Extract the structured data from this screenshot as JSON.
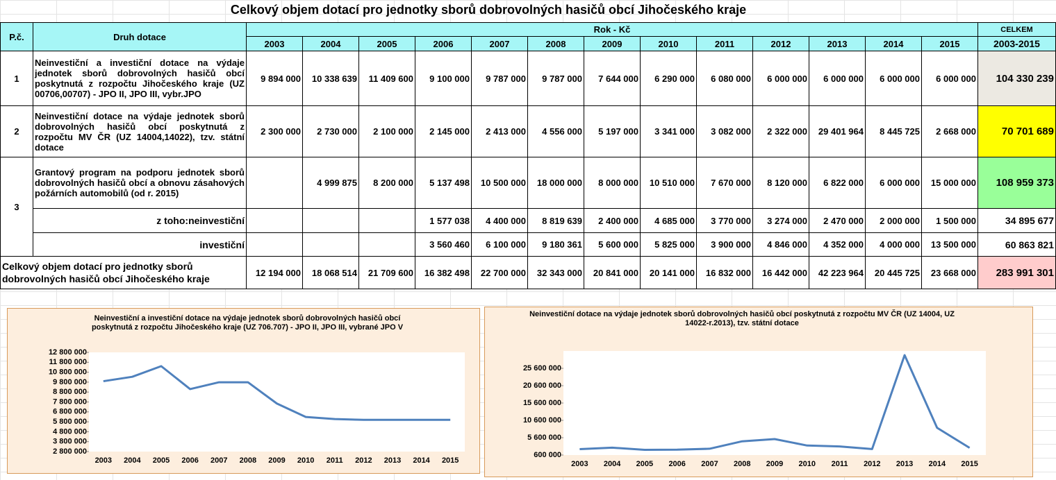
{
  "title": "Celkový objem dotací pro jednotky sborů dobrovolných hasičů obcí Jihočeského kraje",
  "table": {
    "header": {
      "no": "P.č.",
      "type": "Druh dotace",
      "years_group": "Rok - Kč",
      "years": [
        "2003",
        "2004",
        "2005",
        "2006",
        "2007",
        "2008",
        "2009",
        "2010",
        "2011",
        "2012",
        "2013",
        "2014",
        "2015"
      ],
      "total_top": "CELKEM",
      "total_bottom": "2003-2015"
    },
    "rows": [
      {
        "no": "1",
        "label": "Neinvestiční a investiční dotace na výdaje jednotek sborů dobrovolných hasičů obcí poskytnutá z rozpočtu Jihočeského kraje (UZ 00706,00707) - JPO II, JPO III, vybr.JPO",
        "values": [
          "9 894 000",
          "10 338 639",
          "11 409 600",
          "9 100 000",
          "9 787 000",
          "9 787 000",
          "7 644 000",
          "6 290 000",
          "6 080 000",
          "6 000 000",
          "6 000 000",
          "6 000 000",
          "6 000 000"
        ],
        "total": "104 330 239"
      },
      {
        "no": "2",
        "label": "Neinvestiční dotace na výdaje jednotek sborů dobrovolných hasičů obcí poskytnutá z rozpočtu MV ČR (UZ 14004,14022), tzv. státní dotace",
        "values": [
          "2 300 000",
          "2 730 000",
          "2 100 000",
          "2 145 000",
          "2 413 000",
          "4 556 000",
          "5 197 000",
          "3 341 000",
          "3 082 000",
          "2 322 000",
          "29 401 964",
          "8 445 725",
          "2 668 000"
        ],
        "total": "70 701 689"
      },
      {
        "no": "3",
        "label": "Grantový program na podporu jednotek sborů dobrovolných hasičů obcí a obnovu zásahových požárních automobilů (od r. 2015)",
        "values": [
          null,
          "4 999 875",
          "8 200 000",
          "5 137 498",
          "10 500 000",
          "18 000 000",
          "8 000 000",
          "10 510 000",
          "7 670 000",
          "8 120 000",
          "6 822 000",
          "6 000 000",
          "15 000 000"
        ],
        "total": "108 959 373"
      },
      {
        "label": "z toho:neinvestiční",
        "values": [
          null,
          null,
          null,
          "1 577 038",
          "4 400 000",
          "8 819 639",
          "2 400 000",
          "4 685 000",
          "3 770 000",
          "3 274 000",
          "2 470 000",
          "2 000 000",
          "1 500 000"
        ],
        "total": "34 895 677"
      },
      {
        "label": "investiční",
        "values": [
          null,
          null,
          null,
          "3 560 460",
          "6 100 000",
          "9 180 361",
          "5 600 000",
          "5 825 000",
          "3 900 000",
          "4 846 000",
          "4 352 000",
          "4 000 000",
          "13 500 000"
        ],
        "total": "60 863 821"
      },
      {
        "label": "Celkový objem dotací pro jednotky sborů dobrovolných hasičů obcí Jihočeského kraje",
        "values": [
          "12 194 000",
          "18 068 514",
          "21 709 600",
          "16 382 498",
          "22 700 000",
          "32 343 000",
          "20 841 000",
          "20 141 000",
          "16 832 000",
          "16 442 000",
          "42 223 964",
          "20 445 725",
          "23 668 000"
        ],
        "total": "283 991 301"
      }
    ]
  },
  "chart_data": [
    {
      "type": "line",
      "title": "Neinvestiční a investiční dotace na výdaje jednotek sborů dobrovolných hasičů obcí poskytnutá z rozpočtu Jihočeského kraje (UZ 706.707) - JPO II, JPO III, vybrané JPO V",
      "categories": [
        "2003",
        "2004",
        "2005",
        "2006",
        "2007",
        "2008",
        "2009",
        "2010",
        "2011",
        "2012",
        "2013",
        "2014",
        "2015"
      ],
      "values": [
        9894000,
        10338639,
        11409600,
        9100000,
        9787000,
        9787000,
        7644000,
        6290000,
        6080000,
        6000000,
        6000000,
        6000000,
        6000000
      ],
      "color": "#4f81bd",
      "ylim": [
        2800000,
        12800000
      ],
      "yticks": [
        {
          "value": 2800000,
          "label": "2 800 000"
        },
        {
          "value": 3800000,
          "label": "3 800 000"
        },
        {
          "value": 4800000,
          "label": "4 800 000"
        },
        {
          "value": 5800000,
          "label": "5 800 000"
        },
        {
          "value": 6800000,
          "label": "6 800 000"
        },
        {
          "value": 7800000,
          "label": "7 800 000"
        },
        {
          "value": 8800000,
          "label": "8 800 000"
        },
        {
          "value": 9800000,
          "label": "9 800 000"
        },
        {
          "value": 10800000,
          "label": "10 800 000"
        },
        {
          "value": 11800000,
          "label": "11 800 000"
        },
        {
          "value": 12800000,
          "label": "12 800 000"
        }
      ]
    },
    {
      "type": "line",
      "title": "Neinvestiční dotace na výdaje jednotek sborů dobrovolných hasičů obcí poskytnutá z rozpočtu MV ČR (UZ 14004, UZ 14022-r.2013), tzv. státní dotace",
      "categories": [
        "2003",
        "2004",
        "2005",
        "2006",
        "2007",
        "2008",
        "2009",
        "2010",
        "2011",
        "2012",
        "2013",
        "2014",
        "2015"
      ],
      "values": [
        2300000,
        2730000,
        2100000,
        2145000,
        2413000,
        4556000,
        5197000,
        3341000,
        3082000,
        2322000,
        29401964,
        8445725,
        2668000
      ],
      "color": "#4f81bd",
      "ylim": [
        600000,
        30600000
      ],
      "yticks": [
        {
          "value": 600000,
          "label": "600 000"
        },
        {
          "value": 5600000,
          "label": "5 600 000"
        },
        {
          "value": 10600000,
          "label": "10 600 000"
        },
        {
          "value": 15600000,
          "label": "15 600 000"
        },
        {
          "value": 20600000,
          "label": "20 600 000"
        },
        {
          "value": 25600000,
          "label": "25 600 000"
        }
      ]
    }
  ]
}
